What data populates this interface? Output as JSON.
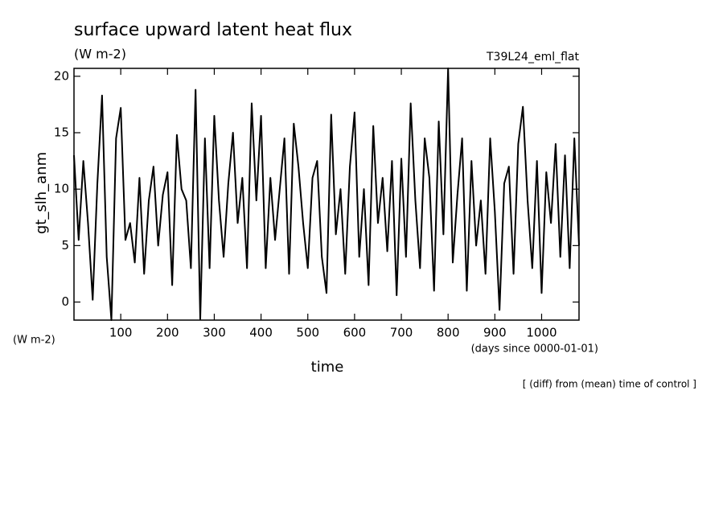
{
  "chart_data": {
    "type": "line",
    "title": "surface upward latent heat flux",
    "units_top": "(W m-2)",
    "experiment": "T39L24_eml_flat",
    "y_label": "gt_slh_anm",
    "units_left": "(W m-2)",
    "x_label": "time",
    "x_units": "(days since 0000-01-01)",
    "note": "[ (diff) from (mean) time of control ]",
    "color": "#000000",
    "x": [
      0,
      10,
      20,
      30,
      40,
      50,
      60,
      70,
      80,
      90,
      100,
      110,
      120,
      130,
      140,
      150,
      160,
      170,
      180,
      190,
      200,
      210,
      220,
      230,
      240,
      250,
      260,
      270,
      280,
      290,
      300,
      310,
      320,
      330,
      340,
      350,
      360,
      370,
      380,
      390,
      400,
      410,
      420,
      430,
      440,
      450,
      460,
      470,
      480,
      490,
      500,
      510,
      520,
      530,
      540,
      550,
      560,
      570,
      580,
      590,
      600,
      610,
      620,
      630,
      640,
      650,
      660,
      670,
      680,
      690,
      700,
      710,
      720,
      730,
      740,
      750,
      760,
      770,
      780,
      790,
      800,
      810,
      820,
      830,
      840,
      850,
      860,
      870,
      880,
      890,
      900,
      910,
      920,
      930,
      940,
      950,
      960,
      970,
      980,
      990,
      1000,
      1010,
      1020,
      1030,
      1040,
      1050,
      1060,
      1070,
      1080
    ],
    "values": [
      13,
      5.5,
      12.5,
      7,
      0.2,
      10.5,
      18.3,
      4,
      -1.6,
      14.5,
      17.2,
      5.5,
      7,
      3.5,
      11,
      2.5,
      9,
      12,
      5,
      9.5,
      11.5,
      1.5,
      14.8,
      10,
      9,
      3,
      18.8,
      -1.5,
      14.5,
      3,
      16.5,
      9,
      4,
      10.5,
      15,
      7,
      11,
      3,
      17.6,
      9,
      16.5,
      3,
      11,
      5.5,
      10,
      14.5,
      2.5,
      15.8,
      12,
      7,
      3,
      11,
      12.5,
      4,
      0.8,
      16.6,
      6,
      10,
      2.5,
      12,
      16.8,
      4,
      10,
      1.5,
      15.6,
      7,
      11,
      4.5,
      12.5,
      0.6,
      12.7,
      4,
      17.6,
      9,
      3,
      14.5,
      11,
      1,
      16,
      6,
      20.7,
      3.5,
      9.5,
      14.5,
      1,
      12.5,
      5,
      9,
      2.5,
      14.5,
      8,
      -0.7,
      10.5,
      12,
      2.5,
      14,
      17.3,
      9,
      3,
      12.5,
      0.8,
      11.5,
      7,
      14,
      4,
      13,
      3,
      14.5,
      5
    ],
    "xlim": [
      0,
      1080
    ],
    "ylim": [
      -1.6,
      20.7
    ],
    "xticks": [
      100,
      200,
      300,
      400,
      500,
      600,
      700,
      800,
      900,
      1000
    ],
    "yticks": [
      0,
      5,
      10,
      15,
      20
    ]
  }
}
